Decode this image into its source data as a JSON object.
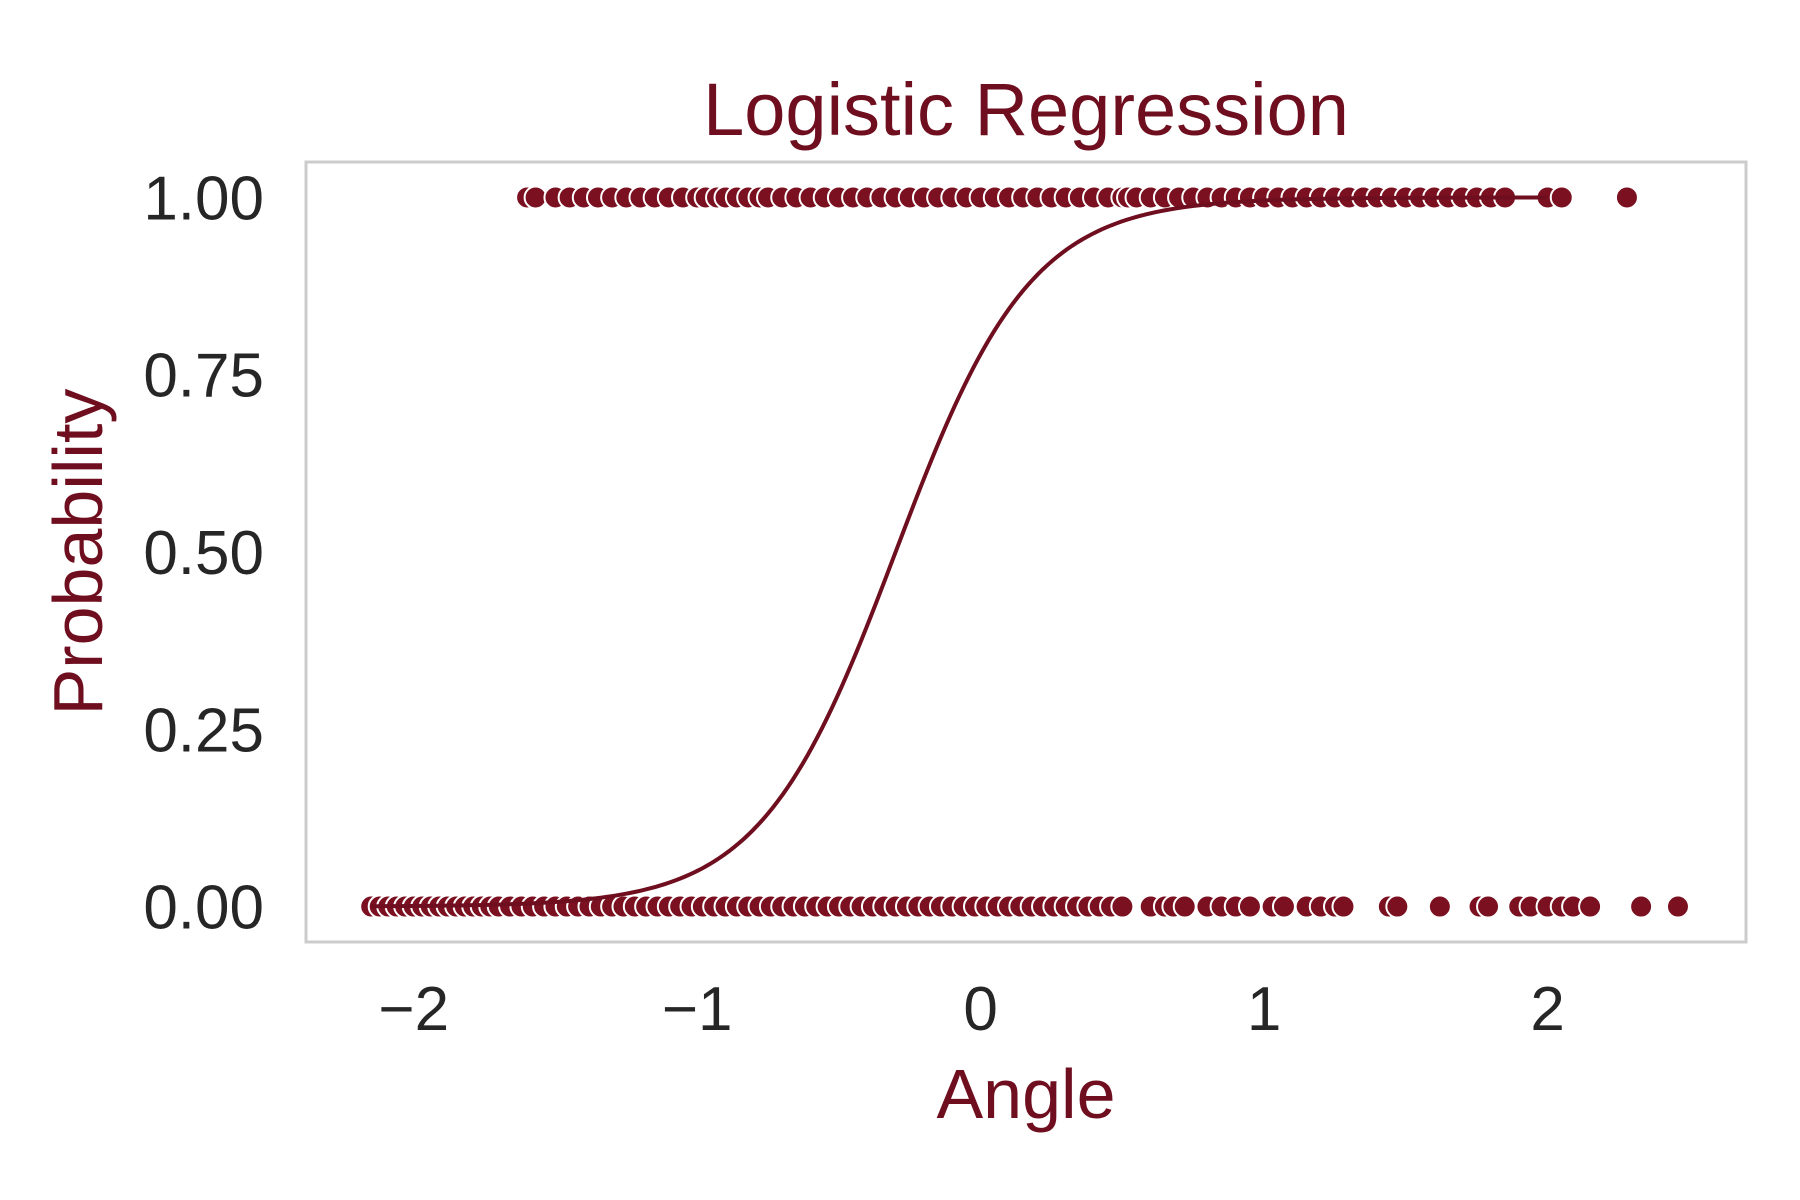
{
  "chart_data": {
    "type": "scatter",
    "title": "Logistic Regression",
    "xlabel": "Angle",
    "ylabel": "Probability",
    "xlim": [
      -2.38,
      2.7
    ],
    "ylim": [
      -0.05,
      1.05
    ],
    "x_ticks": [
      -2,
      -1,
      0,
      1,
      2
    ],
    "x_tick_labels": [
      "−2",
      "−1",
      "0",
      "1",
      "2"
    ],
    "y_ticks": [
      0.0,
      0.25,
      0.5,
      0.75,
      1.0
    ],
    "y_tick_labels": [
      "0.00",
      "0.25",
      "0.50",
      "0.75",
      "1.00"
    ],
    "grid": false,
    "legend": "none",
    "colors": {
      "accent": "#6e0e1e",
      "points": "#7a1020",
      "frame": "#cccccc",
      "tick_text": "#262626"
    },
    "series": [
      {
        "kind": "points",
        "y": 1,
        "x": [
          -1.6,
          -1.57,
          -1.5,
          -1.45,
          -1.4,
          -1.35,
          -1.3,
          -1.25,
          -1.2,
          -1.15,
          -1.1,
          -1.05,
          -1.0,
          -0.97,
          -0.93,
          -0.9,
          -0.86,
          -0.82,
          -0.78,
          -0.75,
          -0.7,
          -0.65,
          -0.6,
          -0.55,
          -0.5,
          -0.45,
          -0.4,
          -0.35,
          -0.3,
          -0.25,
          -0.2,
          -0.15,
          -0.1,
          -0.05,
          0.0,
          0.05,
          0.1,
          0.15,
          0.2,
          0.25,
          0.3,
          0.35,
          0.4,
          0.45,
          0.5,
          0.52,
          0.55,
          0.6,
          0.65,
          0.7,
          0.75,
          0.8,
          0.85,
          0.9,
          0.95,
          1.0,
          1.05,
          1.1,
          1.15,
          1.2,
          1.25,
          1.3,
          1.35,
          1.4,
          1.45,
          1.5,
          1.55,
          1.6,
          1.65,
          1.7,
          1.75,
          1.8,
          1.85,
          2.0,
          2.05,
          2.28
        ]
      },
      {
        "kind": "points",
        "y": 0,
        "x": [
          -2.15,
          -2.12,
          -2.09,
          -2.06,
          -2.03,
          -2.0,
          -1.97,
          -1.94,
          -1.91,
          -1.88,
          -1.85,
          -1.82,
          -1.79,
          -1.76,
          -1.73,
          -1.7,
          -1.66,
          -1.62,
          -1.58,
          -1.54,
          -1.5,
          -1.46,
          -1.42,
          -1.38,
          -1.34,
          -1.3,
          -1.26,
          -1.22,
          -1.18,
          -1.14,
          -1.1,
          -1.06,
          -1.02,
          -0.98,
          -0.94,
          -0.9,
          -0.86,
          -0.82,
          -0.78,
          -0.74,
          -0.7,
          -0.66,
          -0.62,
          -0.58,
          -0.54,
          -0.5,
          -0.46,
          -0.42,
          -0.38,
          -0.34,
          -0.3,
          -0.26,
          -0.22,
          -0.18,
          -0.14,
          -0.1,
          -0.06,
          -0.02,
          0.02,
          0.06,
          0.1,
          0.14,
          0.18,
          0.22,
          0.26,
          0.3,
          0.34,
          0.38,
          0.42,
          0.46,
          0.5,
          0.6,
          0.65,
          0.68,
          0.72,
          0.8,
          0.85,
          0.9,
          0.95,
          1.03,
          1.07,
          1.15,
          1.2,
          1.25,
          1.28,
          1.44,
          1.47,
          1.62,
          1.76,
          1.79,
          1.9,
          1.94,
          2.0,
          2.05,
          2.09,
          2.15,
          2.33,
          2.46
        ]
      },
      {
        "kind": "logistic-curve",
        "x_range": [
          -2.15,
          2.0
        ],
        "midpoint": -0.3,
        "slope": 4.2
      }
    ]
  }
}
